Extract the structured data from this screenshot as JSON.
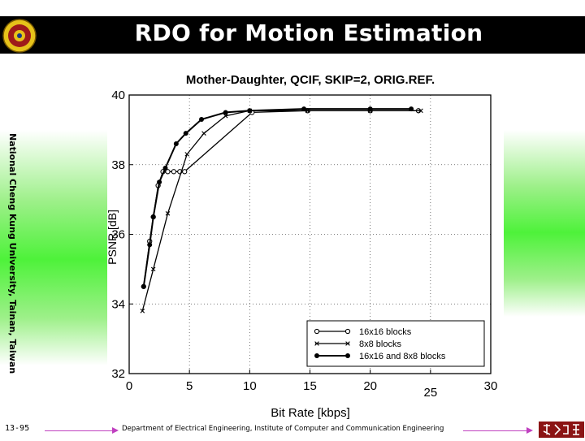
{
  "slide": {
    "title": "RDO for Motion Estimation",
    "side_text": "National Cheng Kung University, Tainan, Taiwan",
    "page_number": "13-95",
    "footer": "Department of Electrical Engineering, Institute of Computer and Communication Engineering"
  },
  "colors": {
    "title_bar": "#000000",
    "accent_green": "#4ef23a",
    "footer_arrow": "#c040c0",
    "logo": "#8b1414"
  },
  "chart_data": {
    "type": "line",
    "title": "Mother-Daughter, QCIF, SKIP=2, ORIG.REF.",
    "xlabel": "Bit Rate [kbps]",
    "ylabel": "PSNR [dB]",
    "xlim": [
      0,
      30
    ],
    "ylim": [
      32,
      40
    ],
    "x_ticks": [
      "0",
      "5",
      "10",
      "15",
      "20",
      "25",
      "30"
    ],
    "y_ticks": [
      "32",
      "34",
      "36",
      "38",
      "40"
    ],
    "grid": "dotted",
    "legend_position": "bottom-right",
    "series": [
      {
        "name": "16x16 blocks",
        "marker": "open-circle",
        "x": [
          1.2,
          1.7,
          2.0,
          2.4,
          2.8,
          3.2,
          3.7,
          4.2,
          4.6,
          10.2,
          14.8,
          20.0,
          24.0
        ],
        "y": [
          34.5,
          35.8,
          36.5,
          37.4,
          37.8,
          37.8,
          37.8,
          37.8,
          37.8,
          39.5,
          39.55,
          39.55,
          39.55
        ]
      },
      {
        "name": "8x8 blocks",
        "marker": "x",
        "x": [
          1.1,
          2.0,
          3.2,
          4.8,
          6.2,
          8.0,
          10.0,
          14.8,
          20.0,
          24.2
        ],
        "y": [
          33.8,
          35.0,
          36.6,
          38.3,
          38.9,
          39.4,
          39.55,
          39.55,
          39.55,
          39.55
        ]
      },
      {
        "name": "16x16 and 8x8 blocks",
        "marker": "filled-circle",
        "x": [
          1.2,
          1.7,
          2.0,
          2.5,
          3.0,
          3.9,
          4.7,
          6.0,
          8.0,
          10.0,
          14.5,
          20.0,
          23.4
        ],
        "y": [
          34.5,
          35.7,
          36.5,
          37.5,
          37.9,
          38.6,
          38.9,
          39.3,
          39.5,
          39.55,
          39.6,
          39.6,
          39.6
        ]
      }
    ]
  }
}
